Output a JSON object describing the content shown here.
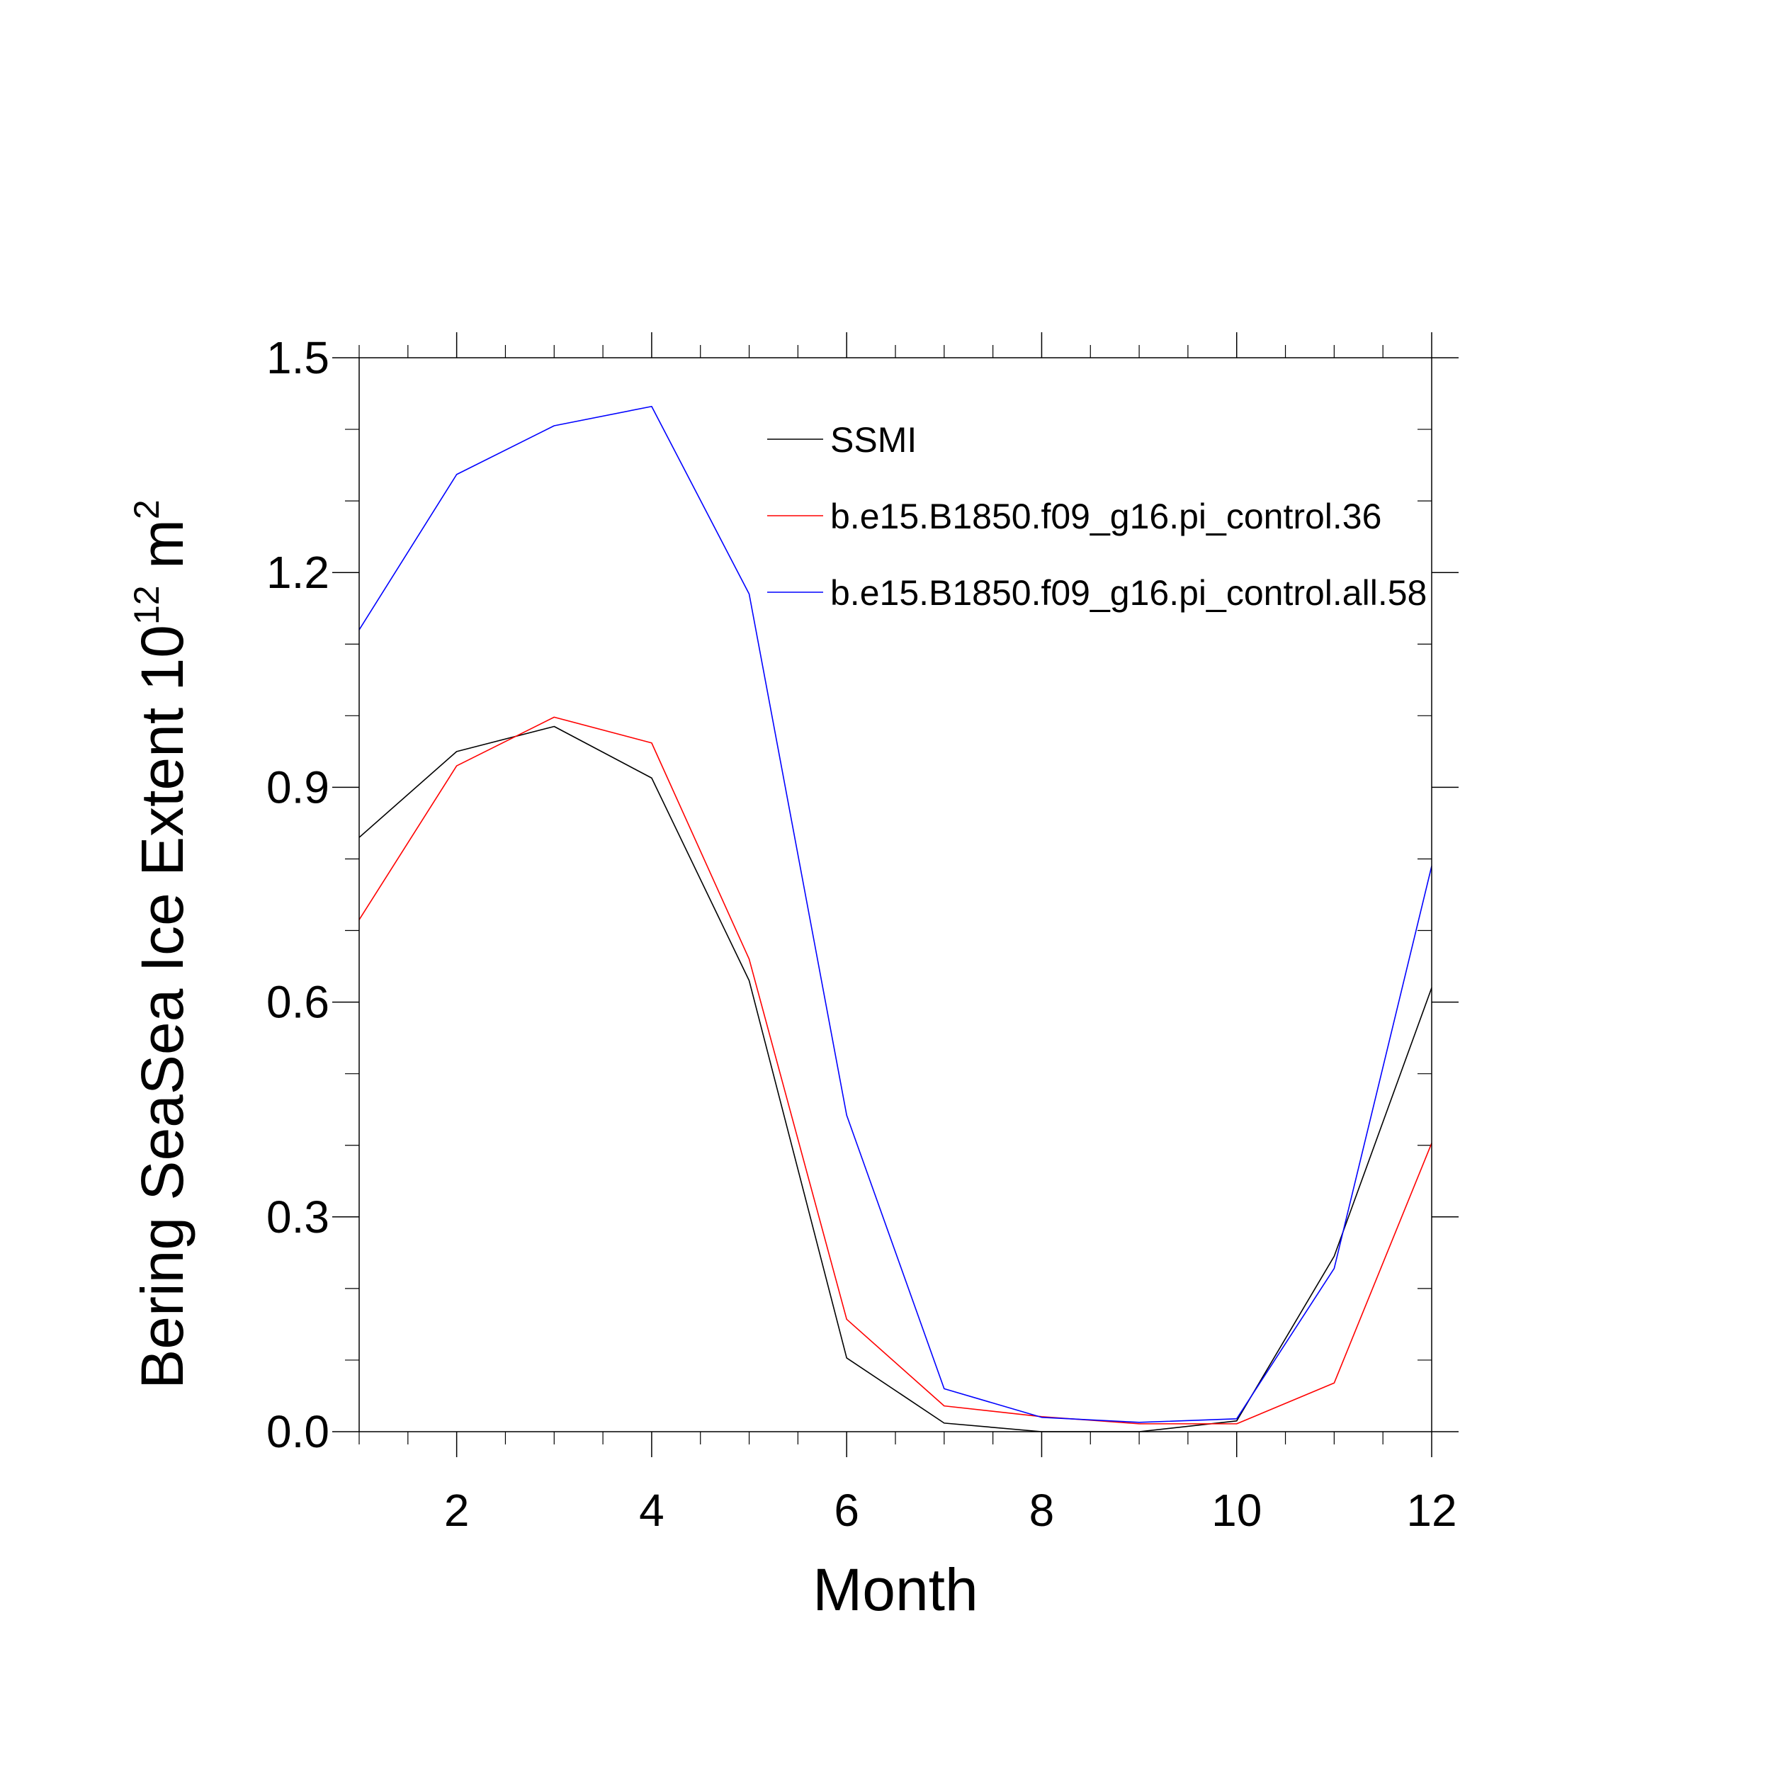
{
  "chart_data": {
    "type": "line",
    "title": "",
    "xlabel": "Month",
    "ylabel": {
      "text": "Bering SeaSea Ice Extent 10",
      "sup1": "12",
      "mid": " m",
      "sup2": "2"
    },
    "xlim": [
      1,
      12
    ],
    "ylim": [
      0,
      1.5
    ],
    "x_ticks": [
      2,
      4,
      6,
      8,
      10,
      12
    ],
    "x_tick_labels": [
      "2",
      "4",
      "6",
      "8",
      "10",
      "12"
    ],
    "y_ticks": [
      0,
      0.3,
      0.6,
      0.9,
      1.2,
      1.5
    ],
    "y_tick_labels": [
      "0.0",
      "0.3",
      "0.6",
      "0.9",
      "1.2",
      "1.5"
    ],
    "grid": false,
    "legend_position": "top-right inside",
    "x": [
      1,
      2,
      3,
      4,
      5,
      6,
      7,
      8,
      9,
      10,
      11,
      12
    ],
    "series": [
      {
        "name": "SSMI",
        "color": "#000000",
        "values": [
          0.83,
          0.95,
          0.985,
          0.913,
          0.63,
          0.103,
          0.012,
          0.0,
          0.0,
          0.015,
          0.245,
          0.62
        ]
      },
      {
        "name": "b.e15.B1850.f09_g16.pi_control.36",
        "color": "#ff0000",
        "values": [
          0.715,
          0.93,
          0.998,
          0.962,
          0.66,
          0.157,
          0.036,
          0.021,
          0.011,
          0.011,
          0.068,
          0.403
        ]
      },
      {
        "name": "b.e15.B1850.f09_g16.pi_control.all.58",
        "color": "#0000ff",
        "values": [
          1.12,
          1.337,
          1.405,
          1.432,
          1.17,
          0.442,
          0.06,
          0.02,
          0.013,
          0.018,
          0.228,
          0.79
        ]
      }
    ]
  }
}
